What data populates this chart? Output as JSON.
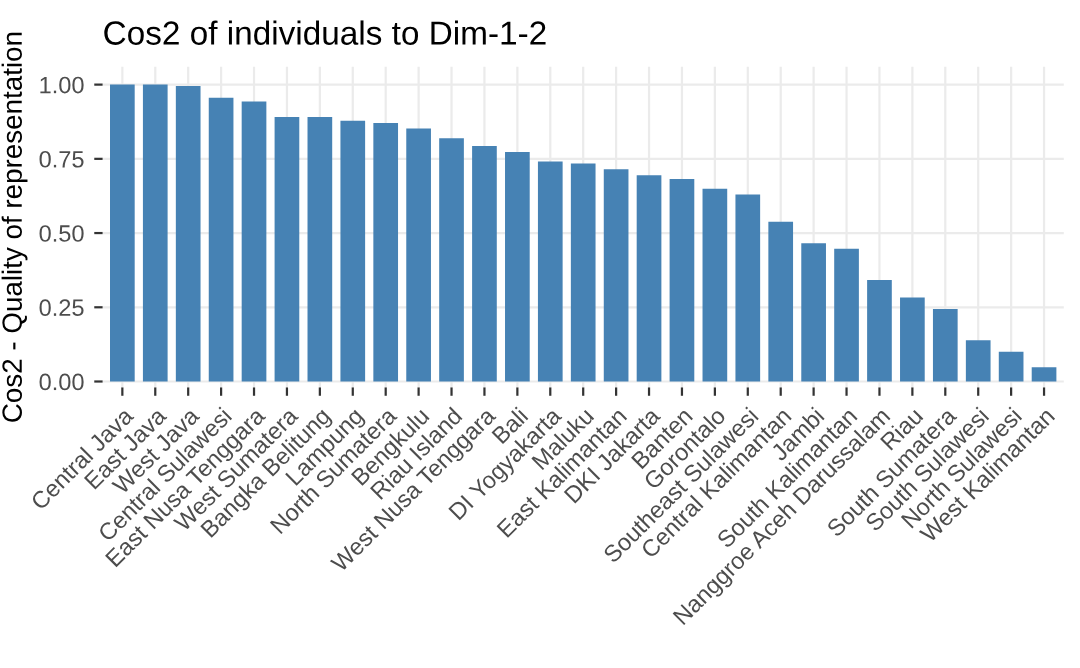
{
  "chart_data": {
    "type": "bar",
    "title": "Cos2 of individuals to Dim-1-2",
    "ylabel": "Cos2 - Quality of representation",
    "categories": [
      "Central Java",
      "East Java",
      "West Java",
      "Central Sulawesi",
      "East Nusa Tenggara",
      "West Sumatera",
      "Bangka Belitung",
      "Lampung",
      "North Sumatera",
      "Bengkulu",
      "Riau Island",
      "West Nusa Tenggara",
      "Bali",
      "DI Yogyakarta",
      "Maluku",
      "East Kalimantan",
      "DKI Jakarta",
      "Banten",
      "Gorontalo",
      "Southeast Sulawesi",
      "Central Kalimantan",
      "Jambi",
      "South Kalimantan",
      "Nanggroe Aceh Darussalam",
      "Riau",
      "South Sumatera",
      "South Sulawesi",
      "North Sulawesi",
      "West Kalimantan"
    ],
    "values": [
      1.0,
      1.0,
      0.995,
      0.956,
      0.943,
      0.891,
      0.891,
      0.878,
      0.871,
      0.852,
      0.819,
      0.793,
      0.773,
      0.741,
      0.734,
      0.715,
      0.695,
      0.682,
      0.649,
      0.63,
      0.538,
      0.466,
      0.447,
      0.342,
      0.283,
      0.244,
      0.139,
      0.1,
      0.048
    ],
    "color": "#4682b4",
    "ylim": [
      -0.02,
      1.06
    ],
    "yticks": [
      {
        "value": 0,
        "label": "0.00"
      },
      {
        "value": 0.25,
        "label": "0.25"
      },
      {
        "value": 0.5,
        "label": "0.50"
      },
      {
        "value": 0.75,
        "label": "0.75"
      },
      {
        "value": 1,
        "label": "1.00"
      }
    ],
    "grid": true
  }
}
